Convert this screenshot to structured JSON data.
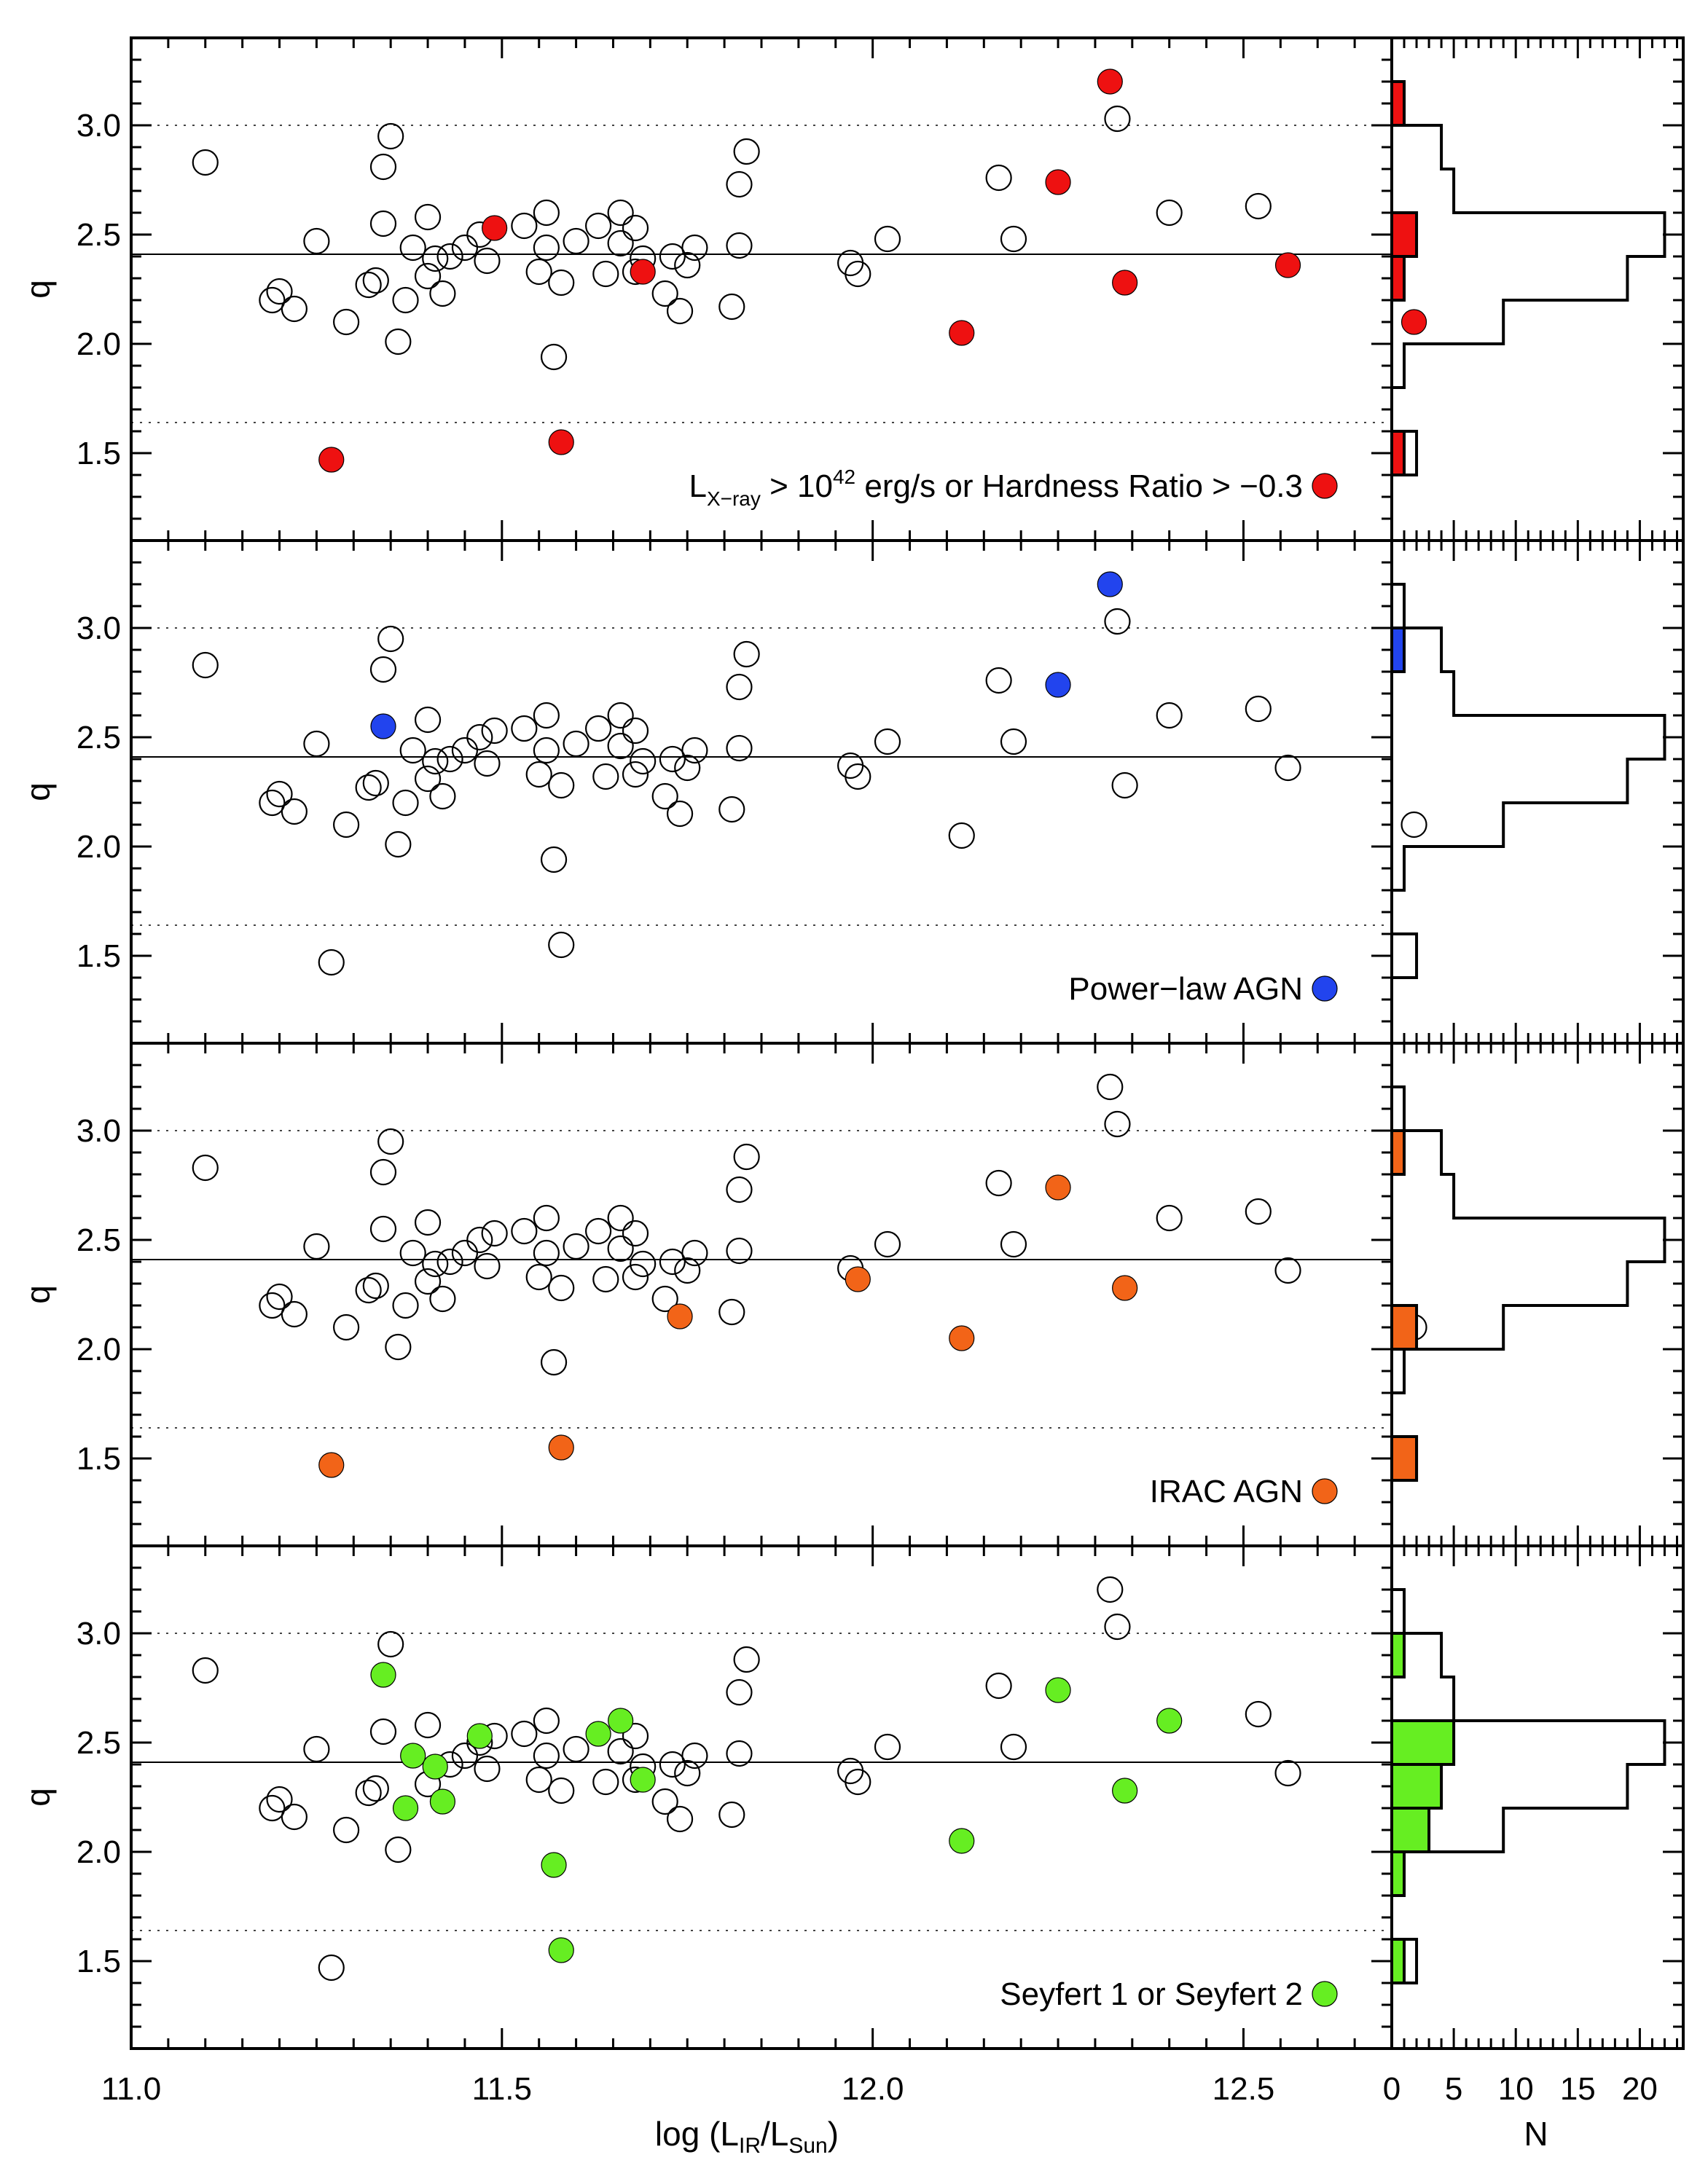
{
  "chart_data": {
    "type": "scatter",
    "description_layout": "four vertically stacked scatter panels of q vs log(L_IR/L_Sun), each with a side histogram of q counts",
    "xlabel": "log (L_IR/L_Sun)",
    "xlabel_parts": {
      "pre": "log (L",
      "sub1": "IR",
      "mid": "/L",
      "sub2": "Sun",
      "post": ")"
    },
    "ylabel": "q",
    "xlim": [
      11.0,
      12.7
    ],
    "ylim": [
      1.1,
      3.4
    ],
    "x_ticks": [
      "11.0",
      "11.5",
      "12.0",
      "12.5"
    ],
    "x_tick_values": [
      11.0,
      11.5,
      12.0,
      12.5
    ],
    "y_ticks": [
      "1.5",
      "2.0",
      "2.5",
      "3.0"
    ],
    "y_tick_values": [
      1.5,
      2.0,
      2.5,
      3.0
    ],
    "reference_lines": {
      "mean_q": 2.41,
      "lower_dotted": 1.64,
      "upper_dotted": 3.0
    },
    "hist_xlabel": "N",
    "hist_xlim": [
      0,
      23.5
    ],
    "hist_ticks": [
      "0",
      "5",
      "10",
      "15",
      "20"
    ],
    "hist_tick_values": [
      0,
      5,
      10,
      15,
      20
    ],
    "hist_bins": [
      1.4,
      1.6,
      1.8,
      2.0,
      2.2,
      2.4,
      2.6,
      2.8,
      3.0,
      3.2
    ],
    "hist_all_counts": [
      2,
      0,
      1,
      9,
      19,
      22,
      5,
      4,
      1
    ],
    "all_points": [
      [
        11.1,
        2.83
      ],
      [
        11.19,
        2.2
      ],
      [
        11.2,
        2.24
      ],
      [
        11.22,
        2.16
      ],
      [
        11.25,
        2.47
      ],
      [
        11.27,
        1.47
      ],
      [
        11.29,
        2.1
      ],
      [
        11.32,
        2.27
      ],
      [
        11.33,
        2.29
      ],
      [
        11.34,
        2.55
      ],
      [
        11.34,
        2.81
      ],
      [
        11.35,
        2.95
      ],
      [
        11.36,
        2.01
      ],
      [
        11.37,
        2.2
      ],
      [
        11.38,
        2.44
      ],
      [
        11.4,
        2.31
      ],
      [
        11.4,
        2.58
      ],
      [
        11.41,
        2.39
      ],
      [
        11.42,
        2.23
      ],
      [
        11.43,
        2.4
      ],
      [
        11.45,
        2.44
      ],
      [
        11.47,
        2.5
      ],
      [
        11.48,
        2.38
      ],
      [
        11.49,
        2.53
      ],
      [
        11.53,
        2.54
      ],
      [
        11.55,
        2.33
      ],
      [
        11.56,
        2.44
      ],
      [
        11.56,
        2.6
      ],
      [
        11.57,
        1.94
      ],
      [
        11.58,
        2.28
      ],
      [
        11.58,
        1.55
      ],
      [
        11.6,
        2.47
      ],
      [
        11.63,
        2.54
      ],
      [
        11.64,
        2.32
      ],
      [
        11.66,
        2.46
      ],
      [
        11.66,
        2.6
      ],
      [
        11.68,
        2.53
      ],
      [
        11.68,
        2.33
      ],
      [
        11.69,
        2.39
      ],
      [
        11.72,
        2.23
      ],
      [
        11.73,
        2.4
      ],
      [
        11.74,
        2.15
      ],
      [
        11.75,
        2.36
      ],
      [
        11.76,
        2.44
      ],
      [
        11.81,
        2.17
      ],
      [
        11.82,
        2.45
      ],
      [
        11.82,
        2.73
      ],
      [
        11.83,
        2.88
      ],
      [
        11.97,
        2.37
      ],
      [
        11.98,
        2.32
      ],
      [
        12.02,
        2.48
      ],
      [
        12.12,
        2.05
      ],
      [
        12.17,
        2.76
      ],
      [
        12.19,
        2.48
      ],
      [
        12.25,
        2.74
      ],
      [
        12.32,
        3.2
      ],
      [
        12.33,
        3.03
      ],
      [
        12.34,
        2.28
      ],
      [
        12.4,
        2.6
      ],
      [
        12.52,
        2.63
      ],
      [
        12.56,
        2.36
      ],
      [
        12.73,
        2.1
      ]
    ],
    "panels": [
      {
        "legend": {
          "text_pre": "L",
          "text_sub": "X−ray",
          "text_mid": " > 10",
          "text_sup": "42",
          "text_post": " erg/s or Hardness Ratio > −0.3"
        },
        "color": "#ee1111",
        "highlighted": [
          [
            11.27,
            1.47
          ],
          [
            11.49,
            2.53
          ],
          [
            11.58,
            1.55
          ],
          [
            11.69,
            2.33
          ],
          [
            12.12,
            2.05
          ],
          [
            12.25,
            2.74
          ],
          [
            12.32,
            3.2
          ],
          [
            12.34,
            2.28
          ],
          [
            12.56,
            2.36
          ],
          [
            12.73,
            2.1
          ]
        ],
        "hist_counts": [
          1,
          0,
          0,
          0,
          1,
          2,
          0,
          0,
          1
        ]
      },
      {
        "legend": {
          "text_pre": "Power−law AGN",
          "text_sub": "",
          "text_mid": "",
          "text_sup": "",
          "text_post": ""
        },
        "color": "#2244ee",
        "highlighted": [
          [
            11.34,
            2.55
          ],
          [
            12.25,
            2.74
          ],
          [
            12.32,
            3.2
          ]
        ],
        "hist_counts": [
          0,
          0,
          0,
          0,
          0,
          0,
          0,
          1,
          0
        ]
      },
      {
        "legend": {
          "text_pre": "IRAC AGN",
          "text_sub": "",
          "text_mid": "",
          "text_sup": "",
          "text_post": ""
        },
        "color": "#f26418",
        "highlighted": [
          [
            11.27,
            1.47
          ],
          [
            11.58,
            1.55
          ],
          [
            11.74,
            2.15
          ],
          [
            11.98,
            2.32
          ],
          [
            12.12,
            2.05
          ],
          [
            12.25,
            2.74
          ],
          [
            12.34,
            2.28
          ]
        ],
        "hist_counts": [
          2,
          0,
          0,
          2,
          0,
          0,
          0,
          1,
          0
        ]
      },
      {
        "legend": {
          "text_pre": "Seyfert 1 or Seyfert 2",
          "text_sub": "",
          "text_mid": "",
          "text_sup": "",
          "text_post": ""
        },
        "color": "#66ee22",
        "highlighted": [
          [
            11.34,
            2.81
          ],
          [
            11.37,
            2.2
          ],
          [
            11.38,
            2.44
          ],
          [
            11.41,
            2.39
          ],
          [
            11.42,
            2.23
          ],
          [
            11.47,
            2.53
          ],
          [
            11.57,
            1.94
          ],
          [
            11.58,
            1.55
          ],
          [
            11.63,
            2.54
          ],
          [
            11.66,
            2.6
          ],
          [
            11.69,
            2.33
          ],
          [
            12.12,
            2.05
          ],
          [
            12.25,
            2.74
          ],
          [
            12.34,
            2.28
          ],
          [
            12.4,
            2.6
          ],
          [
            12.73,
            2.1
          ]
        ],
        "hist_counts": [
          1,
          0,
          1,
          3,
          4,
          5,
          0,
          1,
          0
        ]
      }
    ]
  }
}
